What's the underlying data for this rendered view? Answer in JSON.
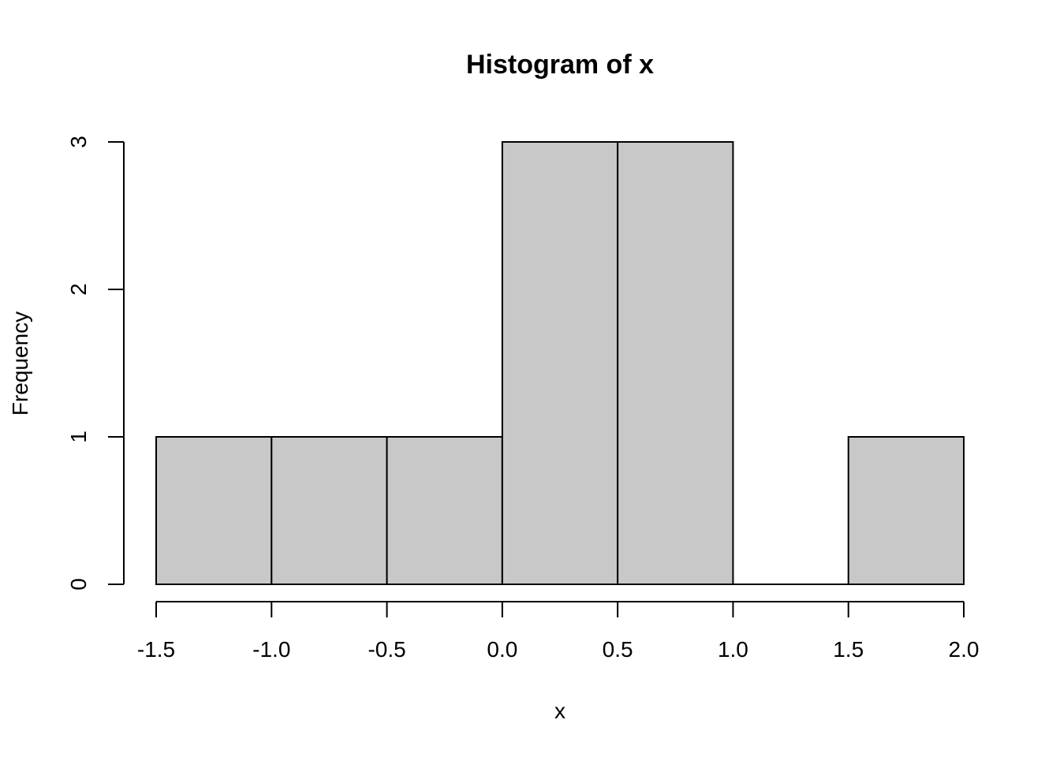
{
  "chart_data": {
    "type": "bar",
    "title": "Histogram of x",
    "xlabel": "x",
    "ylabel": "Frequency",
    "bins": [
      {
        "start": -1.5,
        "end": -1.0,
        "count": 1
      },
      {
        "start": -1.0,
        "end": -0.5,
        "count": 1
      },
      {
        "start": -0.5,
        "end": 0.0,
        "count": 1
      },
      {
        "start": 0.0,
        "end": 0.5,
        "count": 3
      },
      {
        "start": 0.5,
        "end": 1.0,
        "count": 3
      },
      {
        "start": 1.0,
        "end": 1.5,
        "count": 0
      },
      {
        "start": 1.5,
        "end": 2.0,
        "count": 1
      }
    ],
    "xlim": [
      -1.5,
      2.0
    ],
    "ylim": [
      0,
      3
    ],
    "x_ticks": [
      -1.5,
      -1.0,
      -0.5,
      0.0,
      0.5,
      1.0,
      1.5,
      2.0
    ],
    "x_tick_labels": [
      "-1.5",
      "-1.0",
      "-0.5",
      "0.0",
      "0.5",
      "1.0",
      "1.5",
      "2.0"
    ],
    "y_ticks": [
      0,
      1,
      2,
      3
    ],
    "y_tick_labels": [
      "0",
      "1",
      "2",
      "3"
    ],
    "grid": false,
    "colors": {
      "bar_fill": "#c8c8c8",
      "bar_stroke": "#000000"
    }
  }
}
